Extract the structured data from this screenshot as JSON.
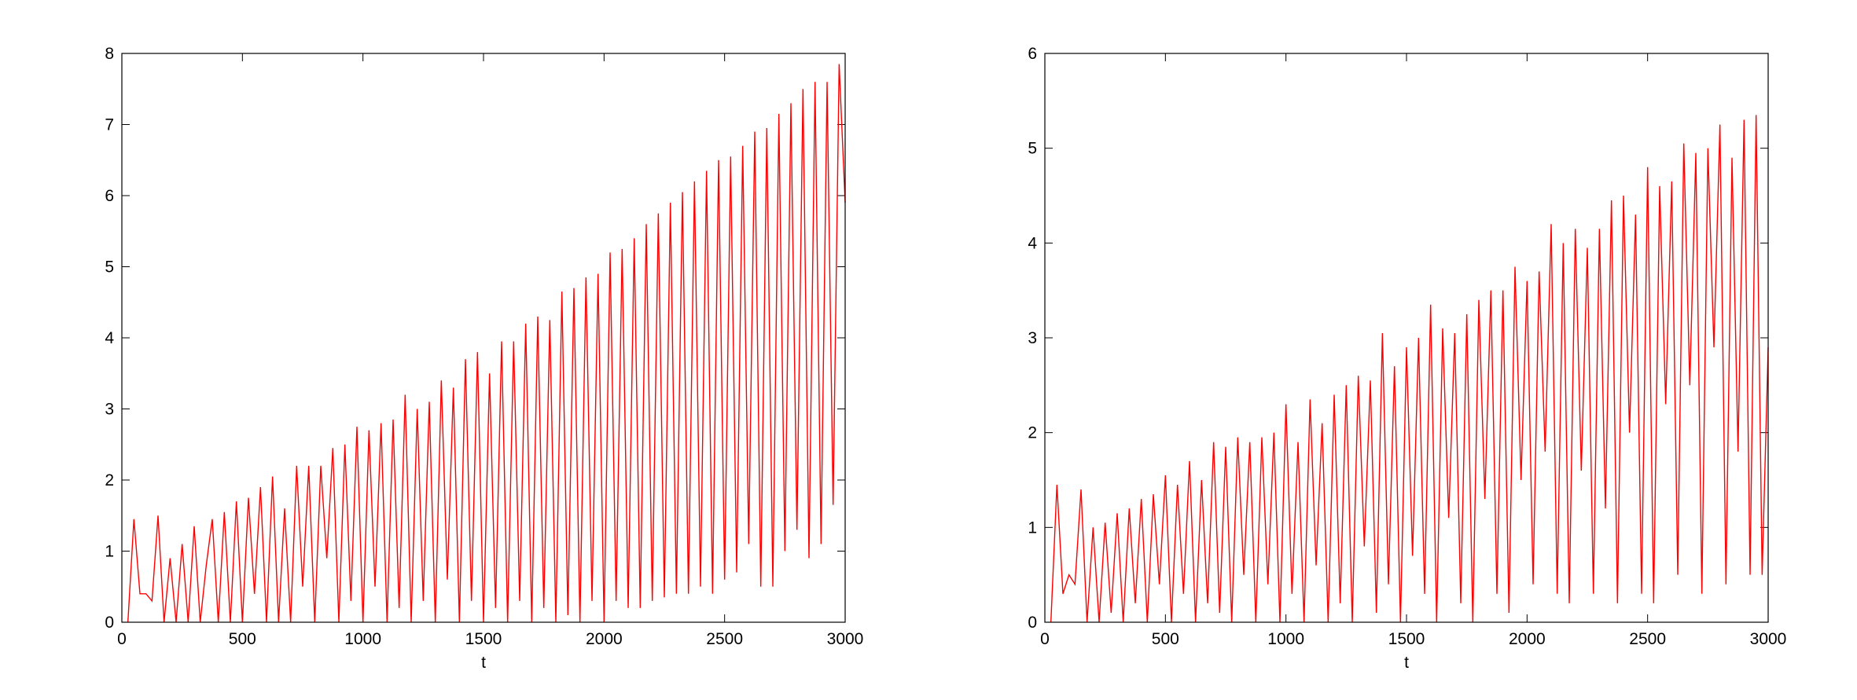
{
  "chart_data": [
    {
      "type": "line",
      "xlabel": "t",
      "color": "#ff0000",
      "x": [
        25,
        50,
        75,
        100,
        125,
        150,
        175,
        200,
        225,
        250,
        275,
        300,
        325,
        350,
        375,
        400,
        425,
        450,
        475,
        500,
        525,
        550,
        575,
        600,
        625,
        650,
        675,
        700,
        725,
        750,
        775,
        800,
        825,
        850,
        875,
        900,
        925,
        950,
        975,
        1000,
        1025,
        1050,
        1075,
        1100,
        1125,
        1150,
        1175,
        1200,
        1225,
        1250,
        1275,
        1300,
        1325,
        1350,
        1375,
        1400,
        1425,
        1450,
        1475,
        1500,
        1525,
        1550,
        1575,
        1600,
        1625,
        1650,
        1675,
        1700,
        1725,
        1750,
        1775,
        1800,
        1825,
        1850,
        1875,
        1900,
        1925,
        1950,
        1975,
        2000,
        2025,
        2050,
        2075,
        2100,
        2125,
        2150,
        2175,
        2200,
        2225,
        2250,
        2275,
        2300,
        2325,
        2350,
        2375,
        2400,
        2425,
        2450,
        2475,
        2500,
        2525,
        2550,
        2575,
        2600,
        2625,
        2650,
        2675,
        2700,
        2725,
        2750,
        2775,
        2800,
        2825,
        2850,
        2875,
        2900,
        2925,
        2950,
        2975,
        3000
      ],
      "values": [
        0,
        1.45,
        0.4,
        0.4,
        0.3,
        1.5,
        0,
        0.9,
        0,
        1.1,
        0,
        1.35,
        0,
        0.8,
        1.45,
        0,
        1.55,
        0,
        1.7,
        0,
        1.75,
        0.4,
        1.9,
        0,
        2.05,
        0,
        1.6,
        0,
        2.2,
        0.5,
        2.2,
        0,
        2.2,
        0.9,
        2.45,
        0,
        2.5,
        0.3,
        2.75,
        0,
        2.7,
        0.5,
        2.8,
        0,
        2.85,
        0.2,
        3.2,
        0,
        3.0,
        0.3,
        3.1,
        0,
        3.4,
        0.6,
        3.3,
        0,
        3.7,
        0.3,
        3.8,
        0,
        3.5,
        0.2,
        3.95,
        0,
        3.95,
        0.3,
        4.2,
        0,
        4.3,
        0.2,
        4.25,
        0,
        4.65,
        0.1,
        4.7,
        0,
        4.85,
        0.3,
        4.9,
        0,
        5.2,
        0.3,
        5.25,
        0.2,
        5.4,
        0.2,
        5.6,
        0.3,
        5.75,
        0.35,
        5.9,
        0.4,
        6.05,
        0.4,
        6.2,
        0.5,
        6.35,
        0.4,
        6.5,
        0.6,
        6.55,
        0.7,
        6.7,
        1.1,
        6.9,
        0.5,
        6.95,
        0.5,
        7.15,
        1.0,
        7.3,
        1.3,
        7.5,
        0.9,
        7.6,
        1.1,
        7.6,
        1.65,
        7.85,
        5.9
      ],
      "xlim": [
        0,
        3000
      ],
      "xticks": [
        0,
        500,
        1000,
        1500,
        2000,
        2500,
        3000
      ],
      "ylim": [
        0,
        8
      ],
      "yticks": [
        0,
        1,
        2,
        3,
        4,
        5,
        6,
        7,
        8
      ]
    },
    {
      "type": "line",
      "xlabel": "t",
      "color": "#ff0000",
      "x": [
        25,
        50,
        75,
        100,
        125,
        150,
        175,
        200,
        225,
        250,
        275,
        300,
        325,
        350,
        375,
        400,
        425,
        450,
        475,
        500,
        525,
        550,
        575,
        600,
        625,
        650,
        675,
        700,
        725,
        750,
        775,
        800,
        825,
        850,
        875,
        900,
        925,
        950,
        975,
        1000,
        1025,
        1050,
        1075,
        1100,
        1125,
        1150,
        1175,
        1200,
        1225,
        1250,
        1275,
        1300,
        1325,
        1350,
        1375,
        1400,
        1425,
        1450,
        1475,
        1500,
        1525,
        1550,
        1575,
        1600,
        1625,
        1650,
        1675,
        1700,
        1725,
        1750,
        1775,
        1800,
        1825,
        1850,
        1875,
        1900,
        1925,
        1950,
        1975,
        2000,
        2025,
        2050,
        2075,
        2100,
        2125,
        2150,
        2175,
        2200,
        2225,
        2250,
        2275,
        2300,
        2325,
        2350,
        2375,
        2400,
        2425,
        2450,
        2475,
        2500,
        2525,
        2550,
        2575,
        2600,
        2625,
        2650,
        2675,
        2700,
        2725,
        2750,
        2775,
        2800,
        2825,
        2850,
        2875,
        2900,
        2925,
        2950,
        2975,
        3000
      ],
      "values": [
        0,
        1.45,
        0.3,
        0.5,
        0.4,
        1.4,
        0,
        1.0,
        0,
        1.05,
        0.1,
        1.15,
        0,
        1.2,
        0.2,
        1.3,
        0,
        1.35,
        0.4,
        1.55,
        0,
        1.45,
        0.3,
        1.7,
        0,
        1.5,
        0.2,
        1.9,
        0.1,
        1.85,
        0,
        1.95,
        0.5,
        1.9,
        0,
        1.95,
        0.4,
        2.0,
        0,
        2.3,
        0.3,
        1.9,
        0,
        2.35,
        0.6,
        2.1,
        0,
        2.4,
        0.2,
        2.5,
        0,
        2.6,
        0.8,
        2.55,
        0.1,
        3.05,
        0.4,
        2.7,
        0,
        2.9,
        0.7,
        3.0,
        0.3,
        3.35,
        0,
        3.1,
        1.1,
        3.05,
        0.2,
        3.25,
        0,
        3.4,
        1.3,
        3.5,
        0.3,
        3.5,
        0.1,
        3.75,
        1.5,
        3.6,
        0.4,
        3.7,
        1.8,
        4.2,
        0.3,
        4.0,
        0.2,
        4.15,
        1.6,
        3.95,
        0.3,
        4.15,
        1.2,
        4.45,
        0.2,
        4.5,
        2.0,
        4.3,
        0.3,
        4.8,
        0.2,
        4.6,
        2.3,
        4.65,
        0.5,
        5.05,
        2.5,
        4.95,
        0.3,
        5.0,
        2.9,
        5.25,
        0.4,
        4.9,
        1.8,
        5.3,
        0.5,
        5.35,
        0.5,
        2.9
      ],
      "xlim": [
        0,
        3000
      ],
      "xticks": [
        0,
        500,
        1000,
        1500,
        2000,
        2500,
        3000
      ],
      "ylim": [
        0,
        6
      ],
      "yticks": [
        0,
        1,
        2,
        3,
        4,
        5,
        6
      ]
    }
  ]
}
